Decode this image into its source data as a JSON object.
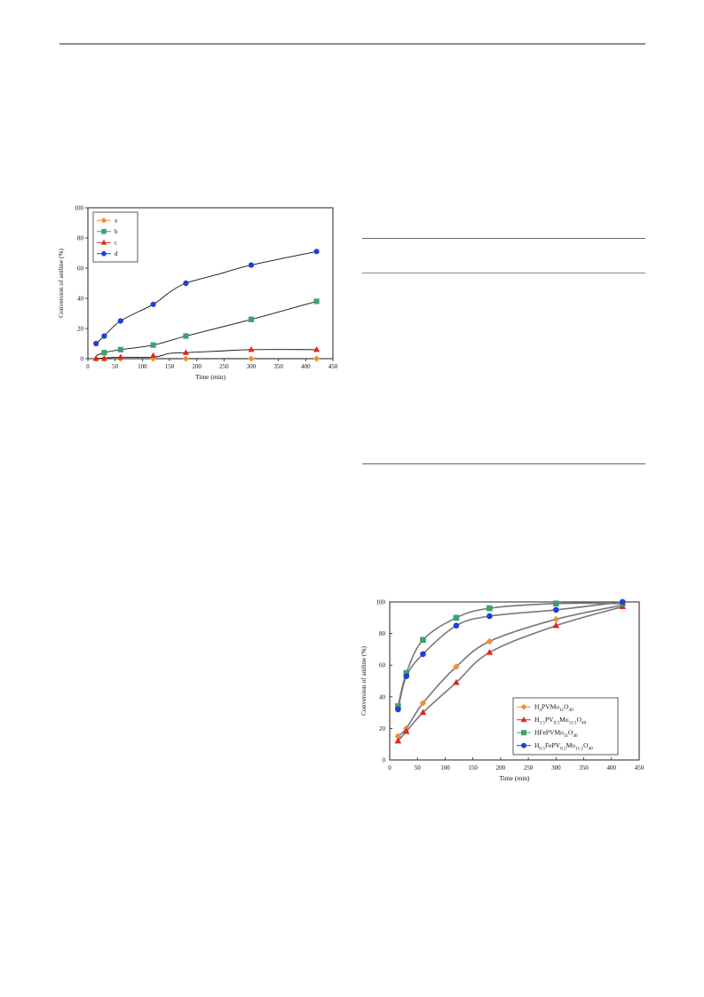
{
  "chart_data": [
    {
      "type": "line",
      "title": "",
      "xlabel": "Time (min)",
      "ylabel": "Conversion of aniline (%)",
      "xlim": [
        0,
        450
      ],
      "ylim": [
        0,
        100
      ],
      "xticks": [
        0,
        50,
        100,
        150,
        200,
        250,
        300,
        350,
        400,
        450
      ],
      "yticks": [
        0,
        20,
        40,
        60,
        80,
        100
      ],
      "grid": false,
      "legend_position": "top-left",
      "series": [
        {
          "name": "a",
          "color": "#f28e2b",
          "marker": "diamond",
          "x": [
            15,
            30,
            60,
            120,
            180,
            300,
            420
          ],
          "y": [
            0,
            0,
            0,
            0,
            0,
            0,
            0
          ],
          "curve_x": [
            15,
            30,
            60,
            120,
            180,
            300,
            420
          ],
          "curve_y": [
            0,
            0,
            0,
            0,
            0,
            0,
            0
          ]
        },
        {
          "name": "b",
          "color": "#3aa36b",
          "marker": "square",
          "x": [
            30,
            60,
            120,
            180,
            300,
            420
          ],
          "y": [
            4,
            6,
            9,
            15,
            26,
            38
          ],
          "curve_x": [
            15,
            30,
            60,
            120,
            180,
            300,
            420
          ],
          "curve_y": [
            2,
            4,
            6,
            9,
            15,
            26,
            38
          ]
        },
        {
          "name": "c",
          "color": "#e0261f",
          "marker": "triangle",
          "x": [
            15,
            30,
            60,
            120,
            180,
            300,
            420
          ],
          "y": [
            0,
            0,
            1,
            2,
            4,
            6,
            6
          ],
          "curve_x": [
            15,
            30,
            60,
            120,
            150,
            180,
            240,
            300,
            420
          ],
          "curve_y": [
            0,
            0.5,
            1,
            1,
            3.5,
            4,
            5,
            6,
            6
          ]
        },
        {
          "name": "d",
          "color": "#1f3fd6",
          "marker": "circle",
          "x": [
            15,
            30,
            60,
            120,
            180,
            300,
            420
          ],
          "y": [
            10,
            15,
            25,
            36,
            50,
            62,
            71
          ],
          "curve_x": [
            15,
            30,
            60,
            120,
            150,
            180,
            240,
            300,
            420
          ],
          "curve_y": [
            10,
            15,
            25,
            36,
            44,
            50,
            56,
            62,
            71
          ]
        }
      ]
    },
    {
      "type": "line",
      "title": "",
      "xlabel": "Time (min)",
      "ylabel": "Conversion of aniline (%)",
      "xlim": [
        0,
        450
      ],
      "ylim": [
        0,
        100
      ],
      "xticks": [
        0,
        50,
        100,
        150,
        200,
        250,
        300,
        350,
        400,
        450
      ],
      "yticks": [
        0,
        20,
        40,
        60,
        80,
        100
      ],
      "grid": false,
      "legend_position": "bottom-right",
      "series": [
        {
          "name": "H4PVMo11O40",
          "name_parts": [
            [
              "H",
              ""
            ],
            [
              "4",
              "sub"
            ],
            [
              "PVMo",
              ""
            ],
            [
              "11",
              "sub"
            ],
            [
              "O",
              ""
            ],
            [
              "40",
              "sub"
            ]
          ],
          "color": "#f28e2b",
          "marker": "diamond",
          "x": [
            15,
            30,
            60,
            120,
            180,
            300,
            420
          ],
          "y": [
            15,
            20,
            36,
            59,
            75,
            89,
            98
          ],
          "curve_x": [
            15,
            30,
            60,
            120,
            180,
            300,
            420
          ],
          "curve_y": [
            15,
            20,
            36,
            59,
            75,
            89,
            98
          ]
        },
        {
          "name": "H3.5PV0.5Mo11.5O40",
          "name_parts": [
            [
              "H",
              ""
            ],
            [
              "3.5",
              "sub"
            ],
            [
              "PV",
              ""
            ],
            [
              "0.5",
              "sub"
            ],
            [
              "Mo",
              ""
            ],
            [
              "11.5",
              "sub"
            ],
            [
              "O",
              ""
            ],
            [
              "40",
              "sub"
            ]
          ],
          "color": "#e0261f",
          "marker": "triangle",
          "x": [
            15,
            30,
            60,
            120,
            180,
            300,
            420
          ],
          "y": [
            12,
            18,
            30,
            49,
            68,
            85,
            97
          ],
          "curve_x": [
            15,
            30,
            60,
            120,
            180,
            300,
            420
          ],
          "curve_y": [
            12,
            18,
            30,
            49,
            68,
            85,
            97
          ]
        },
        {
          "name": "HFePVMo11O40",
          "name_parts": [
            [
              "HFePVMo",
              ""
            ],
            [
              "11",
              "sub"
            ],
            [
              "O",
              ""
            ],
            [
              "40",
              "sub"
            ]
          ],
          "color": "#3aa36b",
          "marker": "square",
          "x": [
            15,
            30,
            60,
            120,
            180,
            300,
            420
          ],
          "y": [
            34,
            55,
            76,
            90,
            96,
            99,
            99
          ],
          "curve_x": [
            15,
            30,
            60,
            120,
            180,
            300,
            420
          ],
          "curve_y": [
            34,
            55,
            76,
            90,
            96,
            99,
            99
          ]
        },
        {
          "name": "H0.5FePV0.5Mo11.5O40",
          "name_parts": [
            [
              "H",
              ""
            ],
            [
              "0.5",
              "sub"
            ],
            [
              "FePV",
              ""
            ],
            [
              "0.5",
              "sub"
            ],
            [
              "Mo",
              ""
            ],
            [
              "11.5",
              "sub"
            ],
            [
              "O",
              ""
            ],
            [
              "40",
              "sub"
            ]
          ],
          "color": "#1f3fd6",
          "marker": "circle",
          "x": [
            15,
            30,
            60,
            120,
            180,
            300,
            420
          ],
          "y": [
            32,
            53,
            67,
            85,
            91,
            95,
            100
          ],
          "curve_x": [
            15,
            30,
            60,
            120,
            180,
            300,
            420
          ],
          "curve_y": [
            32,
            53,
            67,
            85,
            91,
            95,
            100
          ]
        }
      ]
    }
  ]
}
